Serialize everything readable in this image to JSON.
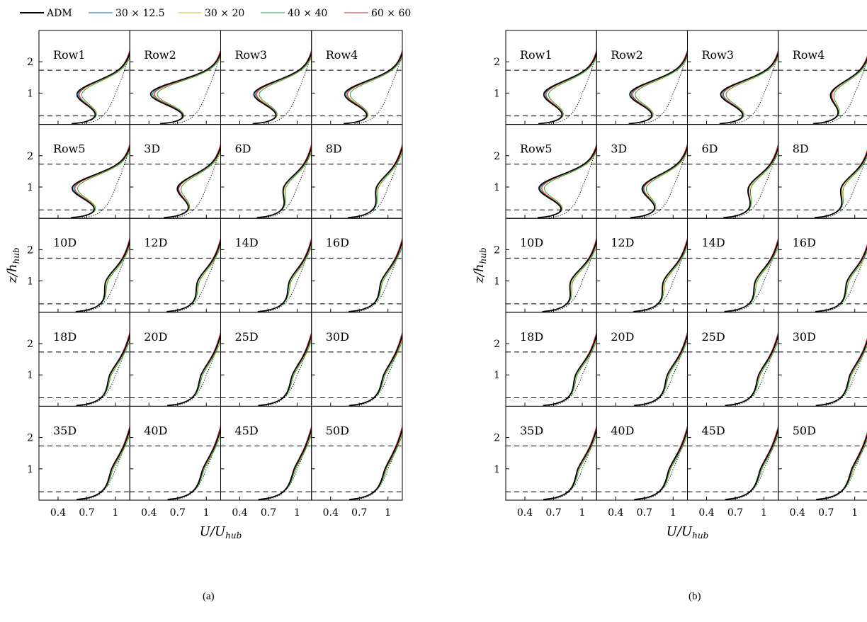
{
  "legend": [
    {
      "name": "ADM",
      "color": "#000000"
    },
    {
      "name": "30 × 12.5",
      "color": "#0072BD"
    },
    {
      "name": "30 × 20",
      "color": "#EDB120"
    },
    {
      "name": "40 × 40",
      "color": "#2CA02C"
    },
    {
      "name": "60 × 60",
      "color": "#D62728"
    }
  ],
  "chart_data": [
    {
      "type": "line",
      "caption": "(a)",
      "xlabel": "U/U_hub",
      "ylabel": "z/h_hub",
      "xticks": [
        "0.4",
        "0.7",
        "1"
      ],
      "yticks": [
        "1",
        "2"
      ],
      "xlim": [
        0.2,
        1.15
      ],
      "ylim": [
        0,
        3
      ],
      "rotor_limits": [
        0.27,
        1.73
      ],
      "panels": [
        "Row1",
        "Row2",
        "Row3",
        "Row4",
        "Row5",
        "3D",
        "6D",
        "8D",
        "10D",
        "12D",
        "14D",
        "16D",
        "18D",
        "20D",
        "25D",
        "30D",
        "35D",
        "40D",
        "45D",
        "50D"
      ],
      "panel_deficit": [
        0.4,
        0.58,
        0.45,
        0.45,
        0.45,
        0.3,
        0.14,
        0.12,
        0.1,
        0.09,
        0.08,
        0.07,
        0.06,
        0.055,
        0.05,
        0.045,
        0.04,
        0.035,
        0.03,
        0.03
      ]
    },
    {
      "type": "line",
      "caption": "(b)",
      "xlabel": "U/U_hub",
      "ylabel": "z/h_hub",
      "xticks": [
        "0.4",
        "0.7",
        "1"
      ],
      "yticks": [
        "1",
        "2"
      ],
      "xlim": [
        0.2,
        1.15
      ],
      "ylim": [
        0,
        3
      ],
      "rotor_limits": [
        0.27,
        1.73
      ],
      "panels": [
        "Row1",
        "Row2",
        "Row3",
        "Row4",
        "Row5",
        "3D",
        "6D",
        "8D",
        "10D",
        "12D",
        "14D",
        "16D",
        "18D",
        "20D",
        "25D",
        "30D",
        "35D",
        "40D",
        "45D",
        "50D"
      ],
      "panel_deficit": [
        0.4,
        0.45,
        0.45,
        0.25,
        0.45,
        0.32,
        0.16,
        0.14,
        0.12,
        0.1,
        0.09,
        0.08,
        0.07,
        0.06,
        0.055,
        0.05,
        0.045,
        0.04,
        0.035,
        0.03
      ]
    }
  ]
}
